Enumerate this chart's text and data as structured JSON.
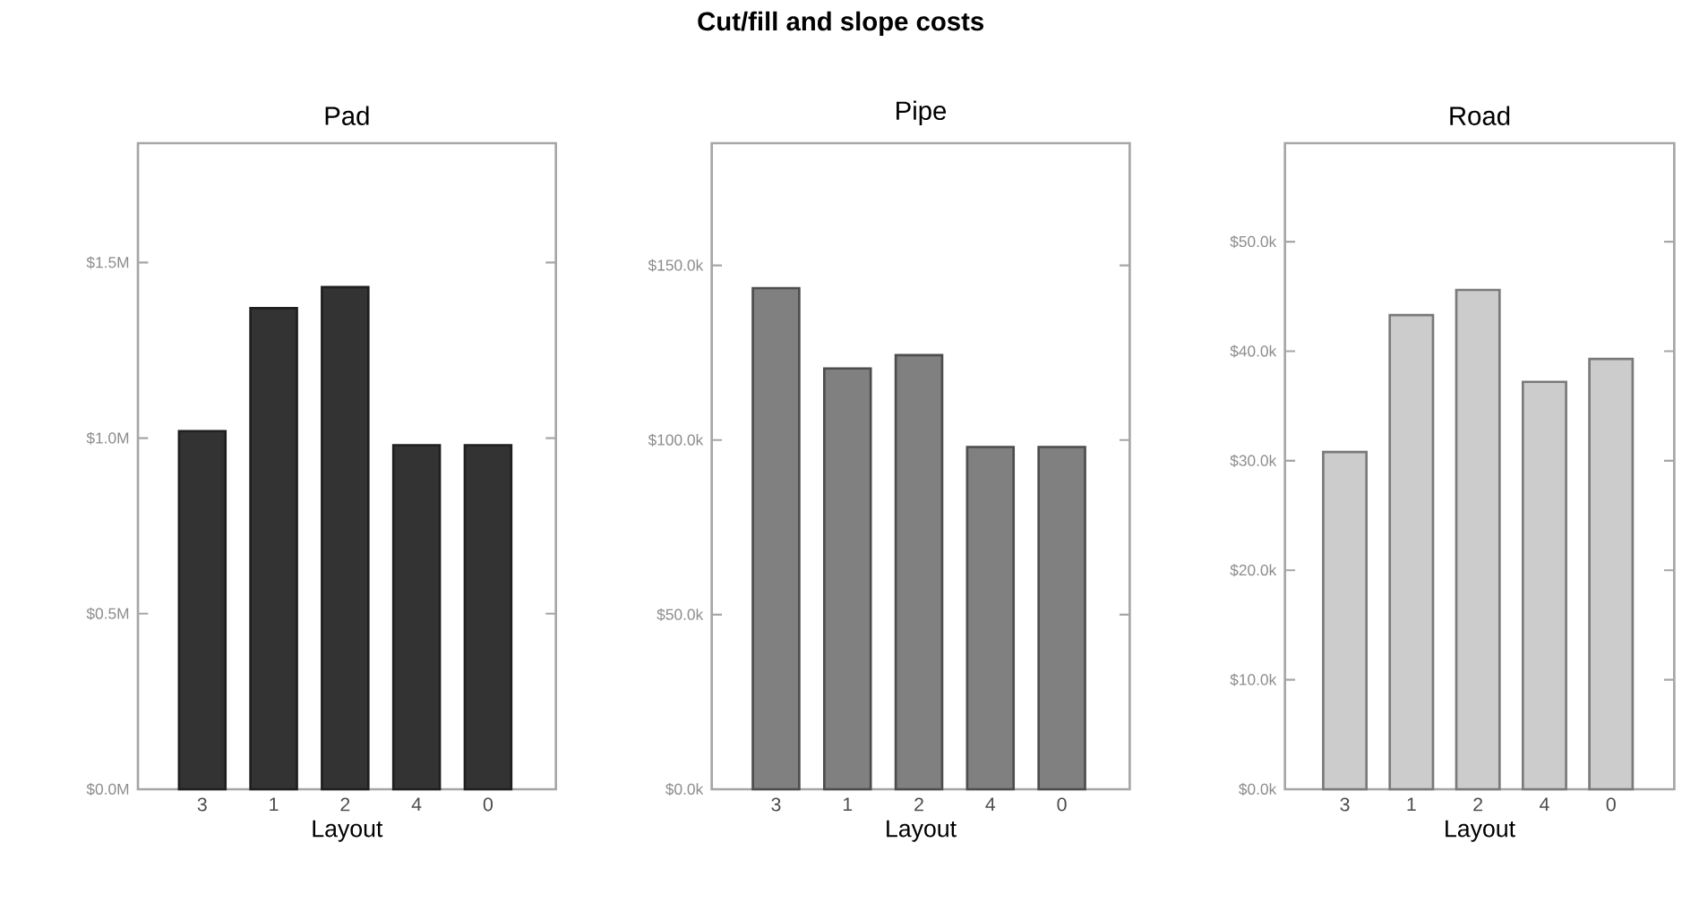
{
  "chart_data": [
    {
      "type": "bar",
      "title": "Pad",
      "xlabel": "Layout",
      "categories": [
        "3",
        "1",
        "2",
        "4",
        "0"
      ],
      "values": [
        1.02,
        1.37,
        1.43,
        0.98,
        0.98
      ],
      "color": "#333333",
      "ylim": [
        0,
        1.84
      ],
      "yticks": [
        {
          "value": 0,
          "label": "$0.0M"
        },
        {
          "value": 0.5,
          "label": "$0.5M"
        },
        {
          "value": 1.0,
          "label": "$1.0M"
        },
        {
          "value": 1.5,
          "label": "$1.5M"
        }
      ],
      "grid": false,
      "annotations": [
        "Cut/fill and slope costs"
      ]
    },
    {
      "type": "bar",
      "title": "Pipe",
      "xlabel": "Layout",
      "categories": [
        "3",
        "1",
        "2",
        "4",
        "0"
      ],
      "values": [
        143.5,
        120.5,
        124.3,
        98,
        98
      ],
      "color": "#808080",
      "ylim": [
        0,
        185
      ],
      "yticks": [
        {
          "value": 0,
          "label": "$0.0k"
        },
        {
          "value": 50,
          "label": "$50.0k"
        },
        {
          "value": 100,
          "label": "$100.0k"
        },
        {
          "value": 150,
          "label": "$150.0k"
        }
      ],
      "grid": false
    },
    {
      "type": "bar",
      "title": "Road",
      "xlabel": "Layout",
      "categories": [
        "3",
        "1",
        "2",
        "4",
        "0"
      ],
      "values": [
        30.8,
        43.3,
        45.6,
        37.2,
        39.3
      ],
      "color": "#cccccc",
      "ylim": [
        0,
        59
      ],
      "yticks": [
        {
          "value": 0,
          "label": "$0.0k"
        },
        {
          "value": 10,
          "label": "$10.0k"
        },
        {
          "value": 20,
          "label": "$20.0k"
        },
        {
          "value": 30,
          "label": "$30.0k"
        },
        {
          "value": 40,
          "label": "$40.0k"
        },
        {
          "value": 50,
          "label": "$50.0k"
        }
      ],
      "grid": false
    }
  ]
}
